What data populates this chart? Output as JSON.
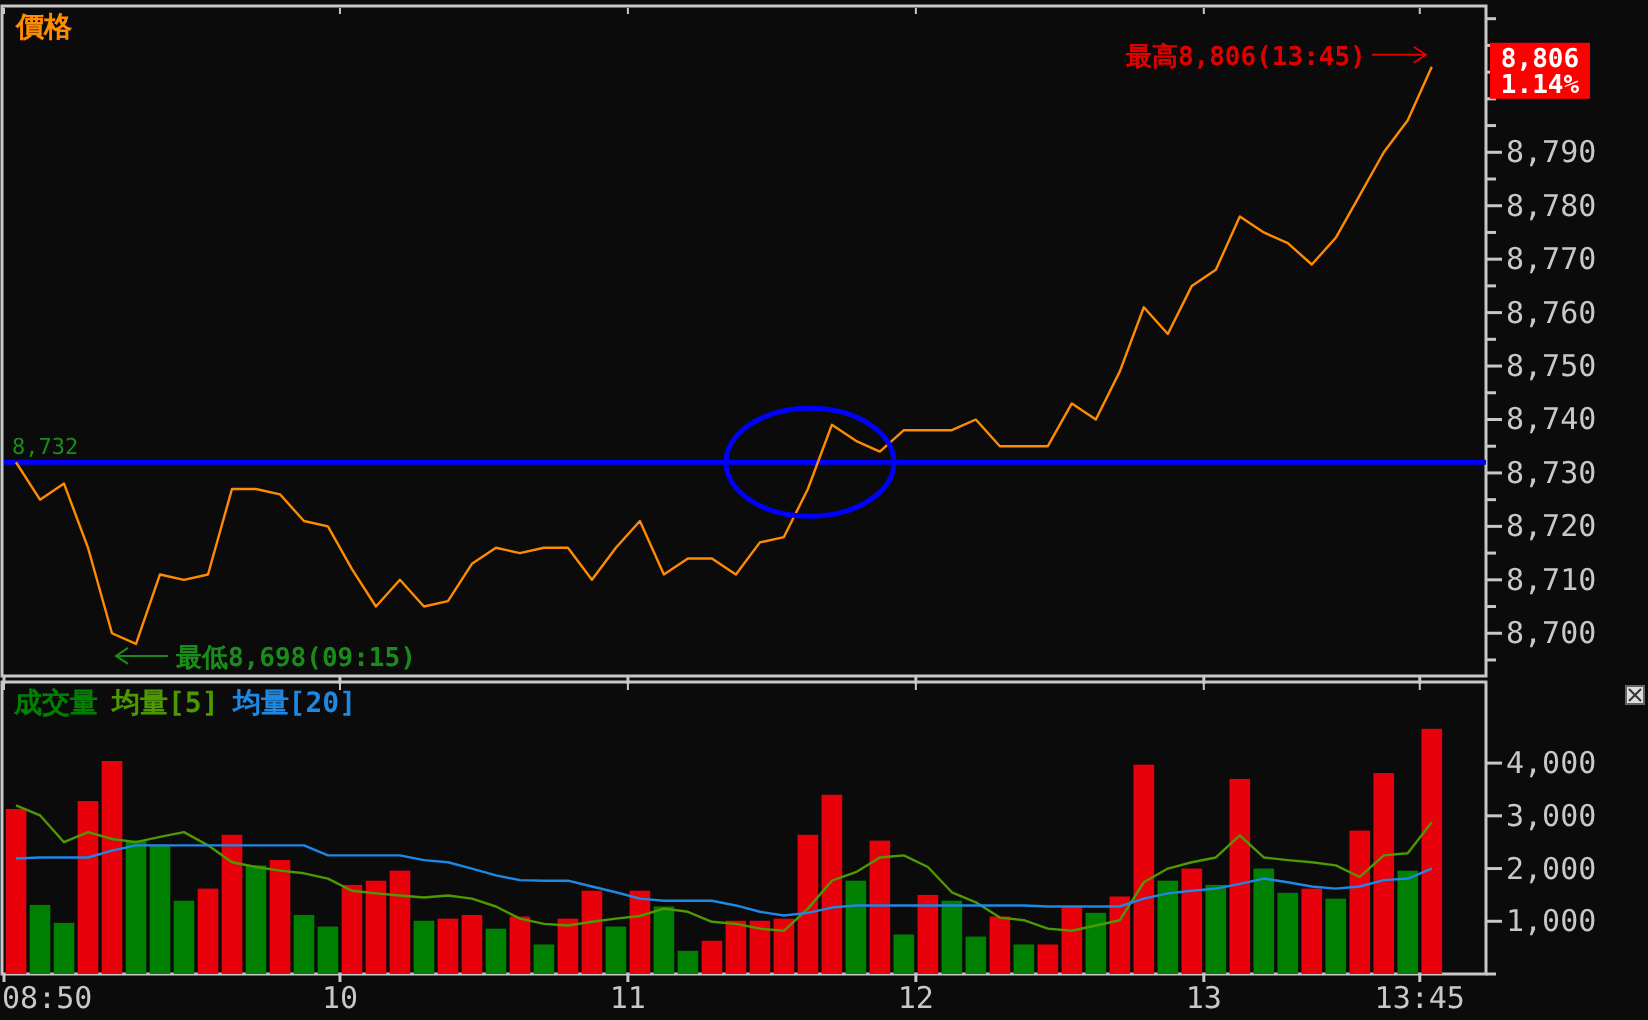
{
  "chart_data": [
    {
      "type": "line",
      "title": "價格",
      "x": [
        8.875,
        8.9583,
        9.0417,
        9.125,
        9.2083,
        9.2917,
        9.375,
        9.4583,
        9.5417,
        9.625,
        9.7083,
        9.7917,
        9.875,
        9.9583,
        10.0417,
        10.125,
        10.2083,
        10.2917,
        10.375,
        10.4583,
        10.5417,
        10.625,
        10.7083,
        10.7917,
        10.875,
        10.9583,
        11.0417,
        11.125,
        11.2083,
        11.2917,
        11.375,
        11.4583,
        11.5417,
        11.625,
        11.7083,
        11.7917,
        11.875,
        11.9583,
        12.0417,
        12.125,
        12.2083,
        12.2917,
        12.375,
        12.4583,
        12.5417,
        12.625,
        12.7083,
        12.7917,
        12.875,
        12.9583,
        13.0417,
        13.125,
        13.2083,
        13.2917,
        13.375,
        13.4583,
        13.5417,
        13.625,
        13.7083,
        13.7917
      ],
      "series": [
        {
          "color": "#ff8c00",
          "values": [
            8732,
            8725,
            8728,
            8716,
            8700,
            8698,
            8711,
            8710,
            8711,
            8727,
            8727,
            8726,
            8721,
            8720,
            8712,
            8705,
            8710,
            8705,
            8706,
            8713,
            8716,
            8715,
            8716,
            8716,
            8710,
            8716,
            8721,
            8711,
            8714,
            8714,
            8711,
            8717,
            8718,
            8727,
            8739,
            8736,
            8734,
            8738,
            8738,
            8738,
            8740,
            8735,
            8735,
            8735,
            8743,
            8740,
            8749,
            8761,
            8756,
            8765,
            8768,
            8778,
            8775,
            8773,
            8769,
            8774,
            8782,
            8790,
            8796,
            8806
          ]
        }
      ],
      "xlim": [
        8.8333,
        13.98
      ],
      "xticks": [
        {
          "value": 8.8333,
          "label": null
        },
        {
          "value": 10,
          "label": null
        },
        {
          "value": 11,
          "label": null
        },
        {
          "value": 12,
          "label": null
        },
        {
          "value": 13,
          "label": null
        },
        {
          "value": 13.75,
          "label": null
        }
      ],
      "ylim": [
        8692,
        8817
      ],
      "yticks": [
        {
          "value": 8695,
          "label": null
        },
        {
          "value": 8700,
          "label": "8,700"
        },
        {
          "value": 8705,
          "label": null
        },
        {
          "value": 8710,
          "label": "8,710"
        },
        {
          "value": 8715,
          "label": null
        },
        {
          "value": 8720,
          "label": "8,720"
        },
        {
          "value": 8725,
          "label": null
        },
        {
          "value": 8730,
          "label": "8,730"
        },
        {
          "value": 8735,
          "label": null
        },
        {
          "value": 8740,
          "label": "8,740"
        },
        {
          "value": 8745,
          "label": null
        },
        {
          "value": 8750,
          "label": "8,750"
        },
        {
          "value": 8755,
          "label": null
        },
        {
          "value": 8760,
          "label": "8,760"
        },
        {
          "value": 8765,
          "label": null
        },
        {
          "value": 8770,
          "label": "8,770"
        },
        {
          "value": 8775,
          "label": null
        },
        {
          "value": 8780,
          "label": "8,780"
        },
        {
          "value": 8785,
          "label": null
        },
        {
          "value": 8790,
          "label": "8,790"
        },
        {
          "value": 8795,
          "label": null
        },
        {
          "value": 8800,
          "label": null
        },
        {
          "value": 8805,
          "label": null
        },
        {
          "value": 8810,
          "label": null
        },
        {
          "value": 8815,
          "label": null
        }
      ],
      "tick_labels": "y",
      "ref_lines": [
        {
          "axis": "y",
          "value": 8732,
          "label": "8,732",
          "color": "#0000ff"
        }
      ],
      "annotations": [
        {
          "text": "最低8,698(09:15)",
          "x": 9.2083,
          "y": 8698
        },
        {
          "text": "最高8,806(13:45)",
          "x": 13.7917,
          "y": 8806
        },
        "8,806\n1.14%"
      ],
      "grid": false,
      "legend": false,
      "marker": "none",
      "line_style": "solid"
    },
    {
      "type": "bar",
      "x": [
        8.875,
        8.9583,
        9.0417,
        9.125,
        9.2083,
        9.2917,
        9.375,
        9.4583,
        9.5417,
        9.625,
        9.7083,
        9.7917,
        9.875,
        9.9583,
        10.0417,
        10.125,
        10.2083,
        10.2917,
        10.375,
        10.4583,
        10.5417,
        10.625,
        10.7083,
        10.7917,
        10.875,
        10.9583,
        11.0417,
        11.125,
        11.2083,
        11.2917,
        11.375,
        11.4583,
        11.5417,
        11.625,
        11.7083,
        11.7917,
        11.875,
        11.9583,
        12.0417,
        12.125,
        12.2083,
        12.2917,
        12.375,
        12.4583,
        12.5417,
        12.625,
        12.7083,
        12.7917,
        12.875,
        12.9583,
        13.0417,
        13.125,
        13.2083,
        13.2917,
        13.375,
        13.4583,
        13.5417,
        13.625,
        13.7083,
        13.7917
      ],
      "series": [
        {
          "name": "成交量",
          "type": "bar",
          "values": [
            3130,
            1310,
            970,
            3280,
            4040,
            2530,
            2440,
            1390,
            1620,
            2640,
            2060,
            2160,
            1120,
            900,
            1690,
            1770,
            1960,
            1010,
            1050,
            1120,
            860,
            1090,
            560,
            1050,
            1580,
            900,
            1580,
            1280,
            440,
            630,
            1010,
            1010,
            1050,
            2640,
            3400,
            1770,
            2530,
            750,
            1500,
            1390,
            710,
            1090,
            560,
            560,
            1290,
            1160,
            1470,
            3970,
            1770,
            2000,
            1690,
            3700,
            2000,
            1540,
            1620,
            1430,
            2720,
            3810,
            1960,
            4650
          ],
          "colors": [
            "#e8000b",
            "#008000",
            "#008000",
            "#e8000b",
            "#e8000b",
            "#008000",
            "#008000",
            "#008000",
            "#e8000b",
            "#e8000b",
            "#008000",
            "#e8000b",
            "#008000",
            "#008000",
            "#e8000b",
            "#e8000b",
            "#e8000b",
            "#008000",
            "#e8000b",
            "#e8000b",
            "#008000",
            "#e8000b",
            "#008000",
            "#e8000b",
            "#e8000b",
            "#008000",
            "#e8000b",
            "#008000",
            "#008000",
            "#e8000b",
            "#e8000b",
            "#e8000b",
            "#e8000b",
            "#e8000b",
            "#e8000b",
            "#008000",
            "#e8000b",
            "#008000",
            "#e8000b",
            "#008000",
            "#008000",
            "#e8000b",
            "#008000",
            "#e8000b",
            "#e8000b",
            "#008000",
            "#e8000b",
            "#e8000b",
            "#008000",
            "#e8000b",
            "#008000",
            "#e8000b",
            "#008000",
            "#008000",
            "#e8000b",
            "#008000",
            "#e8000b",
            "#e8000b",
            "#008000",
            "#e8000b"
          ]
        },
        {
          "name": "均量[5]",
          "type": "line",
          "color": "#4c9a00",
          "values": [
            3200,
            3010,
            2500,
            2690,
            2560,
            2500,
            2600,
            2690,
            2440,
            2120,
            2030,
            1960,
            1910,
            1810,
            1580,
            1530,
            1490,
            1450,
            1490,
            1430,
            1280,
            1050,
            950,
            920,
            990,
            1050,
            1100,
            1240,
            1180,
            990,
            950,
            860,
            820,
            1240,
            1770,
            1930,
            2210,
            2250,
            2030,
            1550,
            1360,
            1070,
            1020,
            860,
            820,
            920,
            1020,
            1740,
            2000,
            2120,
            2210,
            2630,
            2210,
            2160,
            2120,
            2060,
            1840,
            2250,
            2290,
            2880
          ]
        },
        {
          "name": "均量[20]",
          "type": "line",
          "color": "#1e88e5",
          "values": [
            2190,
            2210,
            2210,
            2210,
            2340,
            2440,
            2440,
            2440,
            2440,
            2440,
            2440,
            2440,
            2440,
            2250,
            2250,
            2250,
            2250,
            2160,
            2120,
            2000,
            1870,
            1780,
            1770,
            1770,
            1660,
            1550,
            1430,
            1390,
            1390,
            1390,
            1300,
            1180,
            1110,
            1160,
            1260,
            1300,
            1300,
            1300,
            1300,
            1300,
            1300,
            1300,
            1300,
            1280,
            1280,
            1280,
            1280,
            1430,
            1530,
            1580,
            1620,
            1710,
            1810,
            1740,
            1660,
            1620,
            1660,
            1780,
            1810,
            2000
          ]
        }
      ],
      "xlim": [
        8.8333,
        13.98
      ],
      "xticks": [
        {
          "value": 8.8333,
          "label": "08:50"
        },
        {
          "value": 10,
          "label": "10"
        },
        {
          "value": 11,
          "label": "11"
        },
        {
          "value": 12,
          "label": "12"
        },
        {
          "value": 13,
          "label": "13"
        },
        {
          "value": 13.75,
          "label": "13:45"
        }
      ],
      "ylim": [
        0,
        5500
      ],
      "yticks": [
        {
          "value": 0,
          "label": null
        },
        {
          "value": 1000,
          "label": "1,000"
        },
        {
          "value": 2000,
          "label": "2,000"
        },
        {
          "value": 3000,
          "label": "3,000"
        },
        {
          "value": 4000,
          "label": "4,000"
        }
      ],
      "grid": false,
      "legend": "top left",
      "marker": "none",
      "line_style": "solid"
    }
  ]
}
